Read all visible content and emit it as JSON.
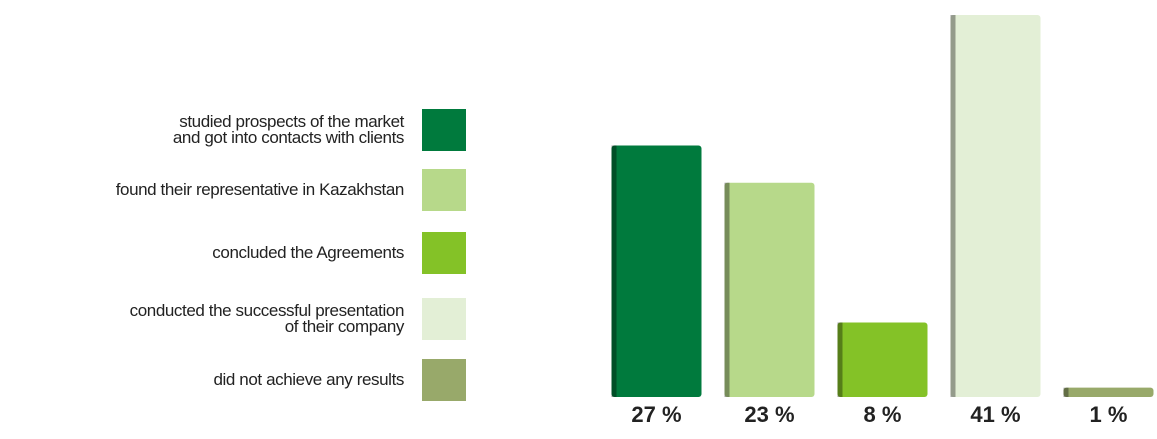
{
  "chart_data": {
    "type": "bar",
    "categories": [
      "studied prospects of the market\nand got into contacts with clients",
      "found their representative in Kazakhstan",
      "concluded the Agreements",
      "conducted the successful presentation\nof their company",
      "did not achieve any results"
    ],
    "colors": [
      "#007a3d",
      "#b7d98a",
      "#84c227",
      "#e3efd6",
      "#98a96a"
    ],
    "values": [
      27,
      23,
      8,
      41,
      1
    ],
    "value_labels": [
      "27 %",
      "23 %",
      "8 %",
      "41 %",
      "1 %"
    ],
    "ylim": [
      0,
      41
    ]
  }
}
